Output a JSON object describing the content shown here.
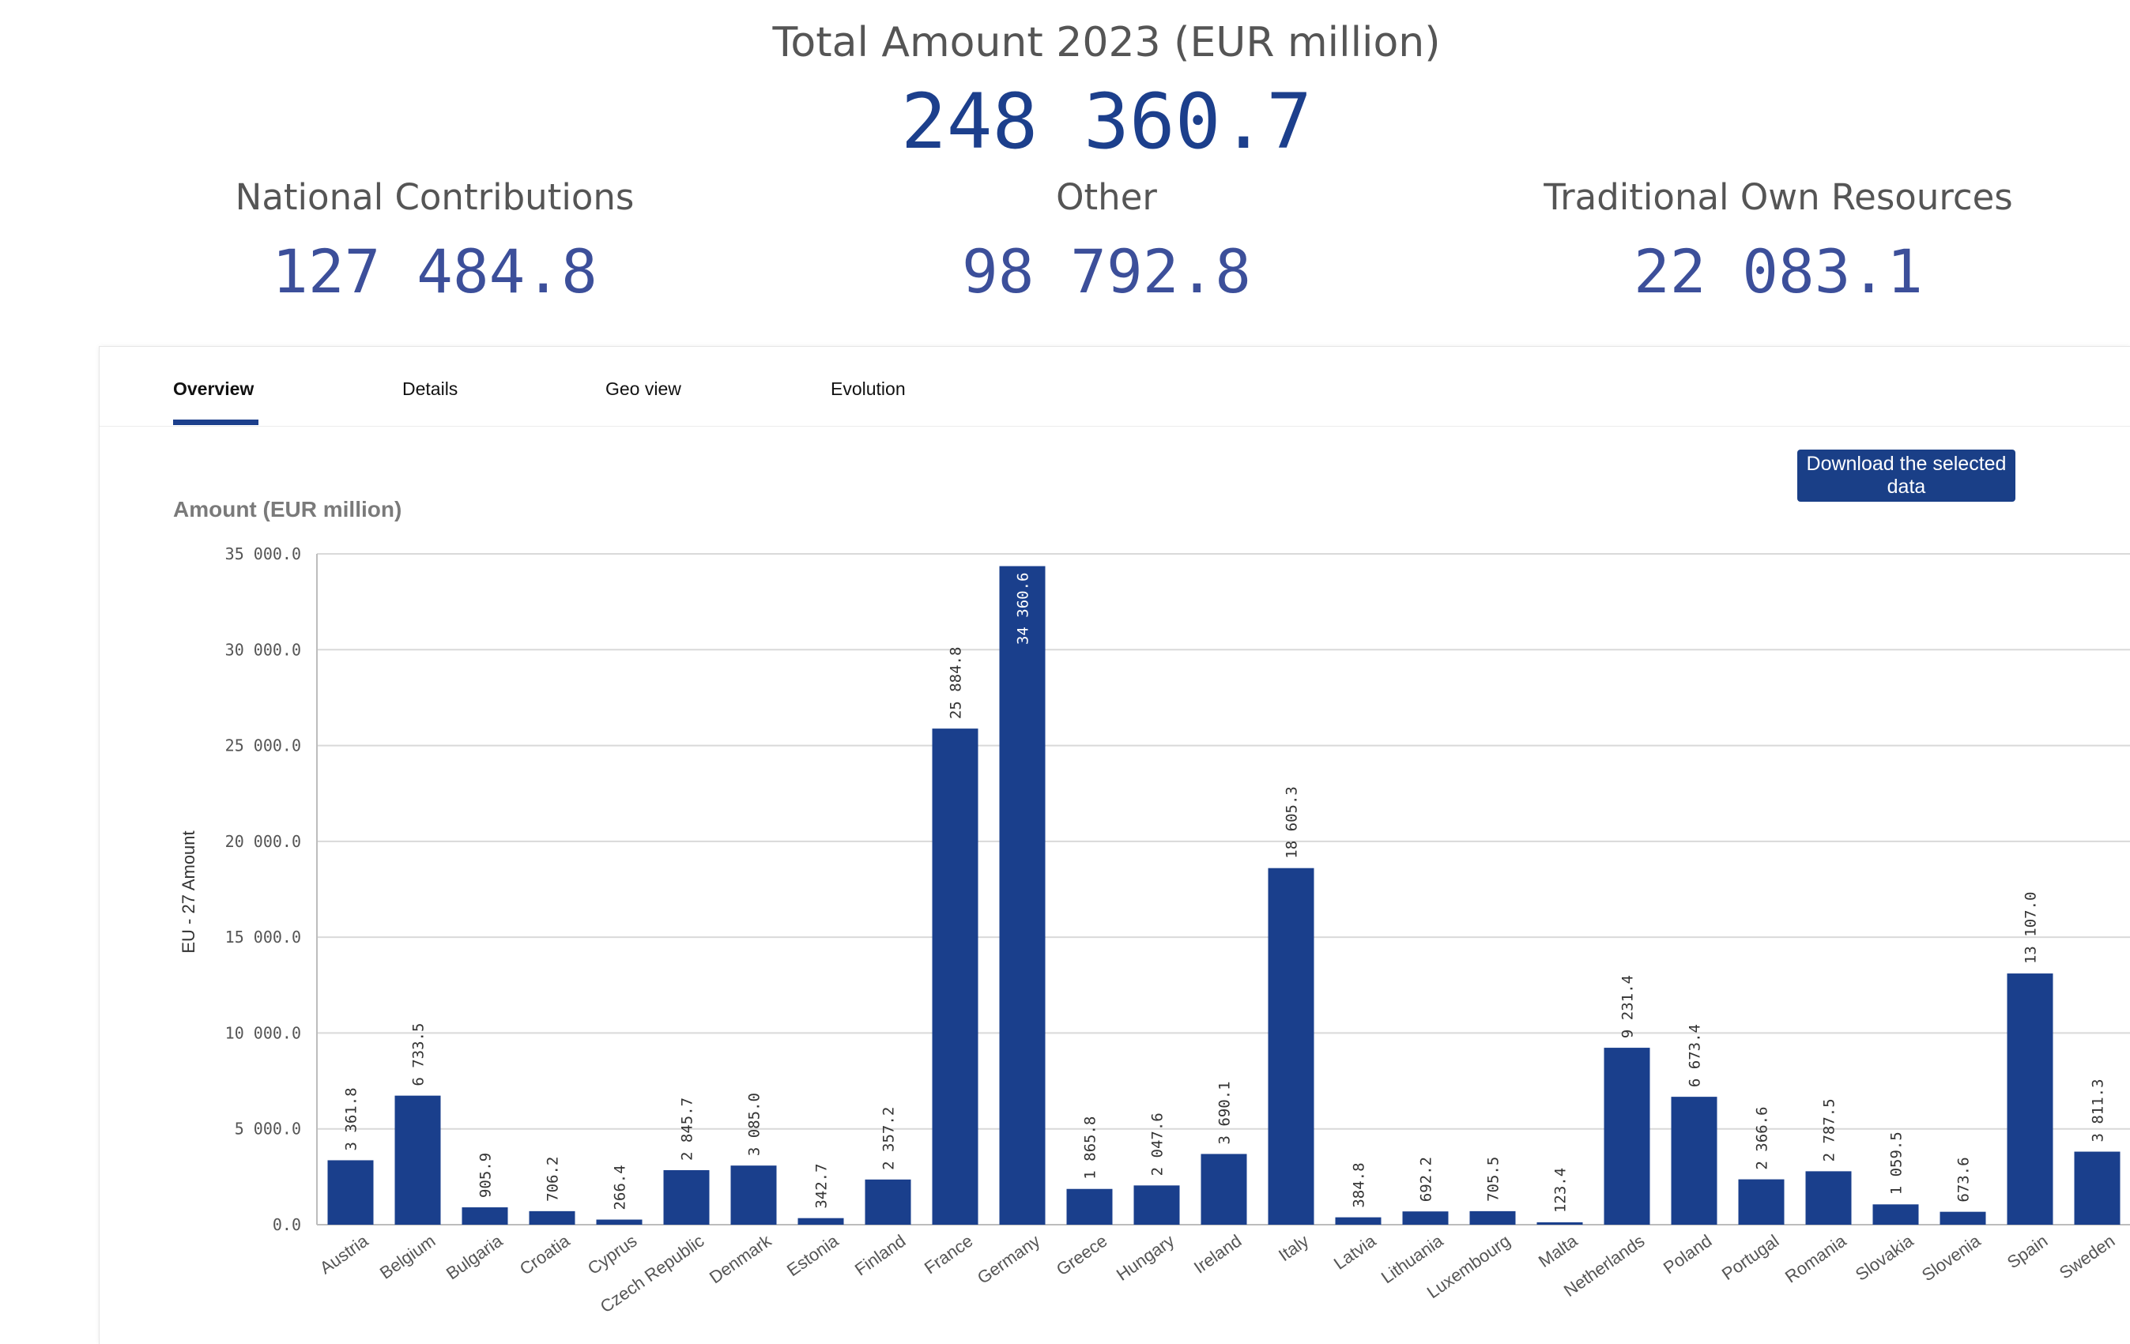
{
  "summary": {
    "total_label": "Total Amount 2023 (EUR million)",
    "total_value": "248 360.7",
    "cards": [
      {
        "label": "National Contributions",
        "value": "127 484.8"
      },
      {
        "label": "Other",
        "value": "98 792.8"
      },
      {
        "label": "Traditional Own Resources",
        "value": "22 083.1"
      }
    ]
  },
  "tabs": [
    {
      "label": "Overview",
      "active": true
    },
    {
      "label": "Details",
      "active": false
    },
    {
      "label": "Geo view",
      "active": false
    },
    {
      "label": "Evolution",
      "active": false
    }
  ],
  "toolbar": {
    "download_label": "Download the selected data"
  },
  "colors": {
    "bar": "#1a3f8c",
    "accent": "#1c3f8c"
  },
  "chart_data": {
    "type": "bar",
    "title": "Amount (EUR million)",
    "xlabel": "",
    "ylabel": "EU - 27 Amount",
    "ylim": [
      0,
      35000
    ],
    "yticks": [
      0,
      5000,
      10000,
      15000,
      20000,
      25000,
      30000,
      35000
    ],
    "ytick_labels": [
      "0.0",
      "5 000.0",
      "10 000.0",
      "15 000.0",
      "20 000.0",
      "25 000.0",
      "30 000.0",
      "35 000.0"
    ],
    "grid": true,
    "categories": [
      "Austria",
      "Belgium",
      "Bulgaria",
      "Croatia",
      "Cyprus",
      "Czech Republic",
      "Denmark",
      "Estonia",
      "Finland",
      "France",
      "Germany",
      "Greece",
      "Hungary",
      "Ireland",
      "Italy",
      "Latvia",
      "Lithuania",
      "Luxembourg",
      "Malta",
      "Netherlands",
      "Poland",
      "Portugal",
      "Romania",
      "Slovakia",
      "Slovenia",
      "Spain",
      "Sweden"
    ],
    "values": [
      3361.8,
      6733.5,
      905.9,
      706.2,
      266.4,
      2845.7,
      3085.0,
      342.7,
      2357.2,
      25884.8,
      34360.6,
      1865.8,
      2047.6,
      3690.1,
      18605.3,
      384.8,
      692.2,
      705.5,
      123.4,
      9231.4,
      6673.4,
      2366.6,
      2787.5,
      1059.5,
      673.6,
      13107.0,
      3811.3
    ],
    "value_labels": [
      "3 361.8",
      "6 733.5",
      "905.9",
      "706.2",
      "266.4",
      "2 845.7",
      "3 085.0",
      "342.7",
      "2 357.2",
      "25 884.8",
      "34 360.6",
      "1 865.8",
      "2 047.6",
      "3 690.1",
      "18 605.3",
      "384.8",
      "692.2",
      "705.5",
      "123.4",
      "9 231.4",
      "6 673.4",
      "2 366.6",
      "2 787.5",
      "1 059.5",
      "673.6",
      "13 107.0",
      "3 811.3"
    ]
  }
}
